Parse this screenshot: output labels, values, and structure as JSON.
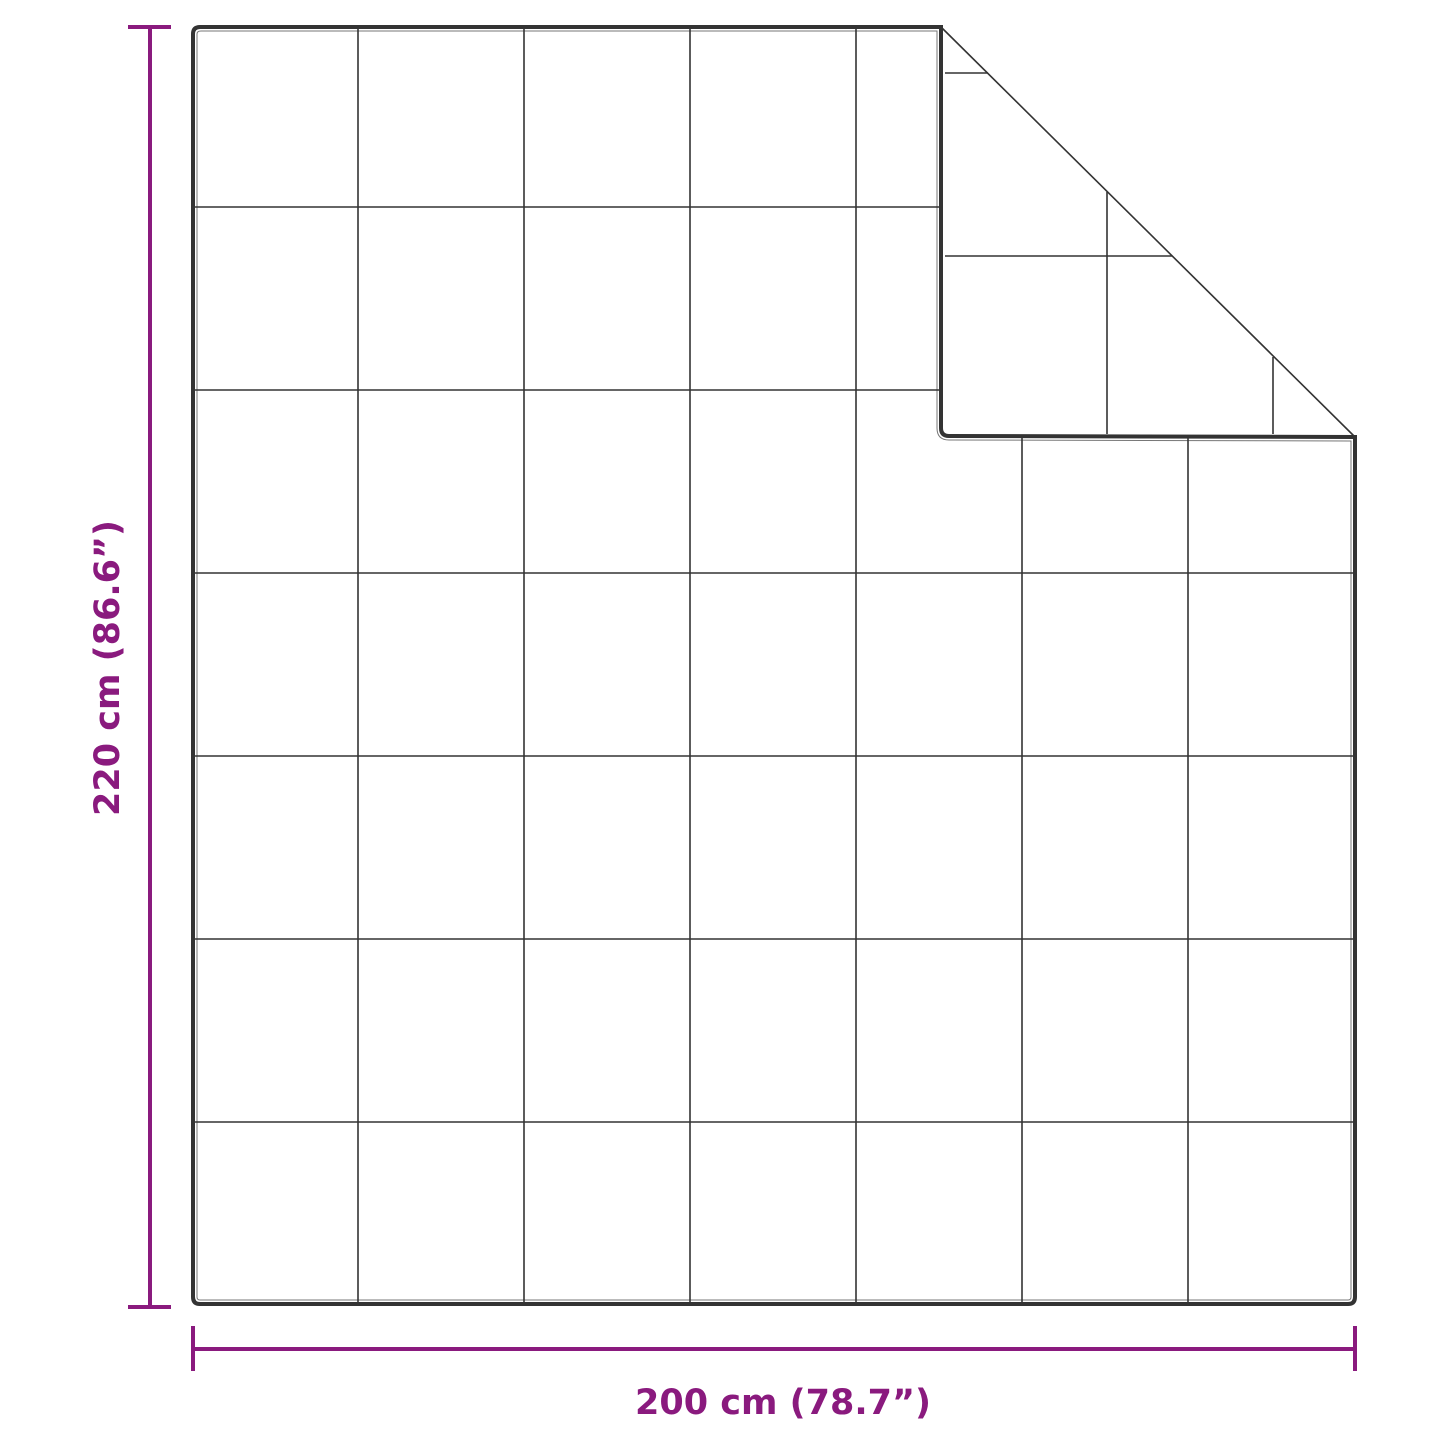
{
  "dimensions": {
    "width_label": "200 cm (78.7”)",
    "height_label": "220 cm (86.6”)"
  },
  "colors": {
    "dimension": "#8a1a7e",
    "outline": "#333333",
    "background": "#ffffff"
  },
  "product": {
    "grid_columns": 7,
    "grid_rows": 7,
    "folded_corner": "top-right"
  }
}
